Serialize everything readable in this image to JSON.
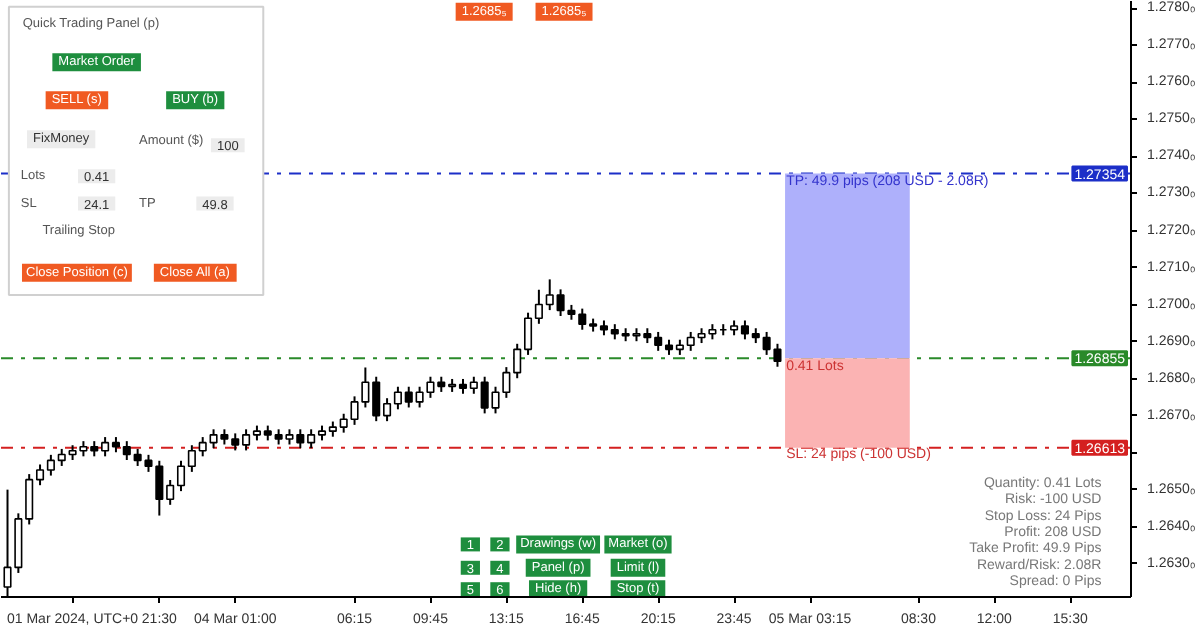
{
  "chart_data": {
    "type": "candlestick",
    "ylim": [
      1.2621,
      1.2782
    ],
    "yticks": [
      {
        "value": 1.263,
        "label": "1.2630₀"
      },
      {
        "value": 1.264,
        "label": "1.2640₀"
      },
      {
        "value": 1.265,
        "label": "1.2650₀"
      },
      {
        "value": 1.266,
        "label": null
      },
      {
        "value": 1.267,
        "label": "1.2670₀"
      },
      {
        "value": 1.268,
        "label": "1.2680₀"
      },
      {
        "value": 1.269,
        "label": "1.2690₀"
      },
      {
        "value": 1.27,
        "label": "1.2700₀"
      },
      {
        "value": 1.271,
        "label": "1.2710₀"
      },
      {
        "value": 1.272,
        "label": "1.2720₀"
      },
      {
        "value": 1.273,
        "label": "1.2730₀"
      },
      {
        "value": 1.274,
        "label": "1.2740₀"
      },
      {
        "value": 1.275,
        "label": "1.2750₀"
      },
      {
        "value": 1.276,
        "label": "1.2760₀"
      },
      {
        "value": 1.277,
        "label": "1.2770₀"
      },
      {
        "value": 1.278,
        "label": "1.2780₀"
      }
    ],
    "categories": [
      null,
      null,
      null,
      null,
      null,
      null,
      "01 Mar 2024, UTC+0",
      null,
      null,
      null,
      null,
      null,
      null,
      null,
      "21:30",
      null,
      null,
      null,
      null,
      null,
      null,
      "04 Mar 01:00",
      null,
      null,
      null,
      null,
      null,
      null,
      null,
      null,
      null,
      null,
      "06:15",
      null,
      null,
      null,
      null,
      null,
      null,
      "09:45",
      null,
      null,
      null,
      null,
      null,
      null,
      "13:15",
      null,
      null,
      null,
      null,
      null,
      null,
      "16:45",
      null,
      null,
      null,
      null,
      null,
      null,
      "20:15",
      null,
      null,
      null,
      null,
      null,
      null,
      "23:45",
      null,
      null,
      null,
      null,
      null,
      null,
      "05 Mar 03:15",
      null,
      null,
      null,
      null,
      null,
      null,
      null,
      null,
      null,
      "08:30",
      null,
      null,
      null,
      null,
      null,
      null,
      "12:00",
      null,
      null,
      null,
      null,
      null,
      null,
      "15:30",
      null,
      null,
      null,
      null,
      null
    ],
    "ohlc": [
      [
        1.26237,
        1.265,
        1.2621,
        1.2629
      ],
      [
        1.2629,
        1.26436,
        1.26275,
        1.26421
      ],
      [
        1.26421,
        1.26542,
        1.26406,
        1.26527
      ],
      [
        1.26527,
        1.26568,
        1.26512,
        1.26553
      ],
      [
        1.26553,
        1.26594,
        1.26538,
        1.26579
      ],
      [
        1.26579,
        1.2661,
        1.26564,
        1.26595
      ],
      [
        1.26595,
        1.2662,
        1.2658,
        1.26605
      ],
      [
        1.26605,
        1.26631,
        1.2659,
        1.26616
      ],
      [
        1.26616,
        1.26631,
        1.2659,
        1.26605
      ],
      [
        1.26605,
        1.26642,
        1.2659,
        1.26627
      ],
      [
        1.26627,
        1.26642,
        1.26601,
        1.26616
      ],
      [
        1.26616,
        1.26631,
        1.2658,
        1.26595
      ],
      [
        1.26595,
        1.2661,
        1.26564,
        1.26579
      ],
      [
        1.26579,
        1.26594,
        1.26548,
        1.26563
      ],
      [
        1.26563,
        1.26578,
        1.2643,
        1.26474
      ],
      [
        1.26474,
        1.26526,
        1.26459,
        1.26511
      ],
      [
        1.26511,
        1.26578,
        1.26496,
        1.26563
      ],
      [
        1.26563,
        1.2662,
        1.26548,
        1.26605
      ],
      [
        1.26605,
        1.26642,
        1.2659,
        1.26627
      ],
      [
        1.26627,
        1.26663,
        1.26612,
        1.26648
      ],
      [
        1.26648,
        1.26663,
        1.26622,
        1.26637
      ],
      [
        1.26637,
        1.26652,
        1.26606,
        1.26621
      ],
      [
        1.26621,
        1.26663,
        1.26606,
        1.26648
      ],
      [
        1.26648,
        1.26673,
        1.26633,
        1.26658
      ],
      [
        1.26658,
        1.26673,
        1.26633,
        1.26648
      ],
      [
        1.26648,
        1.26663,
        1.26622,
        1.26637
      ],
      [
        1.26637,
        1.26663,
        1.26622,
        1.26648
      ],
      [
        1.26648,
        1.26663,
        1.26612,
        1.26627
      ],
      [
        1.26627,
        1.26663,
        1.26612,
        1.26648
      ],
      [
        1.26648,
        1.26673,
        1.26633,
        1.26658
      ],
      [
        1.26658,
        1.26684,
        1.26643,
        1.26669
      ],
      [
        1.26669,
        1.26705,
        1.26654,
        1.2669
      ],
      [
        1.2669,
        1.26752,
        1.26675,
        1.26737
      ],
      [
        1.26737,
        1.2683,
        1.26722,
        1.2679
      ],
      [
        1.2679,
        1.26805,
        1.26685,
        1.267
      ],
      [
        1.267,
        1.26747,
        1.26685,
        1.26732
      ],
      [
        1.26732,
        1.26778,
        1.26717,
        1.26763
      ],
      [
        1.26763,
        1.26778,
        1.26722,
        1.26737
      ],
      [
        1.26737,
        1.26778,
        1.26722,
        1.26763
      ],
      [
        1.26763,
        1.26805,
        1.26748,
        1.2679
      ],
      [
        1.2679,
        1.26805,
        1.26764,
        1.26779
      ],
      [
        1.26779,
        1.26799,
        1.26764,
        1.26784
      ],
      [
        1.26784,
        1.26799,
        1.26759,
        1.26774
      ],
      [
        1.26774,
        1.26805,
        1.26759,
        1.2679
      ],
      [
        1.2679,
        1.26805,
        1.26706,
        1.26721
      ],
      [
        1.26721,
        1.26778,
        1.26706,
        1.26763
      ],
      [
        1.26763,
        1.26831,
        1.26748,
        1.26816
      ],
      [
        1.26816,
        1.26894,
        1.26801,
        1.26879
      ],
      [
        1.26879,
        1.26978,
        1.26864,
        1.26963
      ],
      [
        1.26963,
        1.2704,
        1.26948,
        1.27
      ],
      [
        1.27,
        1.27068,
        1.26985,
        1.27026
      ],
      [
        1.27026,
        1.27041,
        1.26969,
        1.26984
      ],
      [
        1.26984,
        1.26999,
        1.26959,
        1.26974
      ],
      [
        1.26974,
        1.26989,
        1.26932,
        1.26947
      ],
      [
        1.26947,
        1.26962,
        1.26927,
        1.26942
      ],
      [
        1.26942,
        1.26957,
        1.26917,
        1.26932
      ],
      [
        1.26932,
        1.26947,
        1.26906,
        1.26921
      ],
      [
        1.26921,
        1.26936,
        1.26901,
        1.26916
      ],
      [
        1.26916,
        1.26936,
        1.26901,
        1.26921
      ],
      [
        1.26921,
        1.26936,
        1.26896,
        1.26911
      ],
      [
        1.26911,
        1.26926,
        1.26875,
        1.2689
      ],
      [
        1.2689,
        1.26905,
        1.26864,
        1.26879
      ],
      [
        1.26879,
        1.26905,
        1.26864,
        1.2689
      ],
      [
        1.2689,
        1.26926,
        1.26875,
        1.26911
      ],
      [
        1.26911,
        1.26936,
        1.26896,
        1.26921
      ],
      [
        1.26921,
        1.26947,
        1.26906,
        1.26932
      ],
      [
        1.26932,
        1.26947,
        1.26917,
        1.26932
      ],
      [
        1.26932,
        1.26957,
        1.26917,
        1.26942
      ],
      [
        1.26942,
        1.26957,
        1.26906,
        1.26921
      ],
      [
        1.26921,
        1.26936,
        1.26896,
        1.26911
      ],
      [
        1.26911,
        1.26926,
        1.26864,
        1.26879
      ],
      [
        1.26879,
        1.26894,
        1.26832,
        1.26847
      ],
      null,
      null,
      null,
      null,
      null,
      null,
      null,
      null,
      null,
      null,
      null,
      null,
      null,
      null,
      null,
      null,
      null,
      null,
      null,
      null,
      null,
      null,
      null,
      null,
      null,
      null,
      null,
      null,
      null,
      null,
      null,
      null
    ],
    "bands": [
      {
        "axis": "y",
        "from": 1.26855,
        "to": 1.27354,
        "color": "#aeb0fb"
      },
      {
        "axis": "y",
        "from": 1.26613,
        "to": 1.26855,
        "color": "#fbb3b3"
      }
    ],
    "ref_lines": [
      {
        "axis": "y",
        "value": 1.27354,
        "label": "1.27354",
        "color": "#1c2fc8",
        "line_style": "dashdot"
      },
      {
        "axis": "y",
        "value": 1.26855,
        "label": "1.26855",
        "color": "#2a8a2a",
        "line_style": "dashdot"
      },
      {
        "axis": "y",
        "value": 1.26613,
        "label": "1.26613",
        "color": "#d42020",
        "line_style": "dashdot"
      }
    ],
    "annotations": [
      "Quick Trading Panel (p)",
      "Market Order",
      "SELL (s)",
      "BUY (b)",
      "FixMoney",
      "Amount ($)",
      "100",
      "Lots",
      "0.41",
      "SL",
      "24.1",
      "TP",
      "49.8",
      "Trailing Stop",
      "Close Position (c)",
      "Close All (a)",
      "1",
      "2",
      "Drawings (w)",
      "Market (o)",
      "3",
      "4",
      "Panel (p)",
      "Limit (l)",
      "5",
      "6",
      "Hide (h)",
      "Stop (t)",
      "1.2685₅",
      "1.2685₅",
      "Quantity: 0.41 Lots",
      "Risk: -100 USD",
      "Stop Loss: 24 Pips",
      "Profit: 208 USD",
      "Take Profit: 49.9 Pips",
      "Reward/Risk: 2.08R",
      "Spread: 0 Pips",
      "TP: 49.9 pips (208 USD - 2.08R)",
      "0.41 Lots",
      "SL: 24 pips (-100 USD)"
    ]
  }
}
